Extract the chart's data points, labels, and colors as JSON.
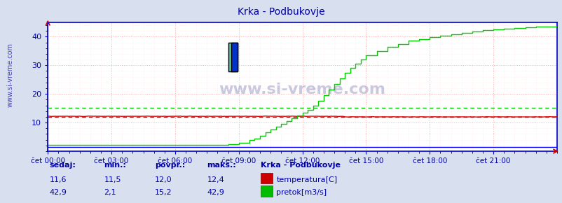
{
  "title": "Krka - Podbukovje",
  "title_color": "#0000aa",
  "bg_color": "#d8e0f0",
  "plot_bg_color": "#ffffff",
  "grid_color_major": "#ffaaaa",
  "grid_color_minor": "#ffe8e8",
  "ylim": [
    0,
    45
  ],
  "yticks": [
    10,
    20,
    30,
    40
  ],
  "xlabel_color": "#0000aa",
  "watermark": "www.si-vreme.com",
  "xtick_labels": [
    "čet 00:00",
    "čet 03:00",
    "čet 06:00",
    "čet 09:00",
    "čet 12:00",
    "čet 15:00",
    "čet 18:00",
    "čet 21:00"
  ],
  "temp_color": "#dd0000",
  "temp_avg_color": "#dd0000",
  "flow_color": "#00cc00",
  "flow_avg_color": "#00cc00",
  "blue_line_color": "#0000ff",
  "temp_avg": 12.0,
  "flow_avg": 15.2,
  "legend_title": "Krka - Podbukovje",
  "legend_items": [
    "temperatura[C]",
    "pretok[m3/s]"
  ],
  "stats_headers": [
    "sedaj:",
    "min.:",
    "povpr.:",
    "maks.:"
  ],
  "stats_temp": [
    "11,6",
    "11,5",
    "12,0",
    "12,4"
  ],
  "stats_flow": [
    "42,9",
    "2,1",
    "15,2",
    "42,9"
  ],
  "axis_color": "#0000cc",
  "sidebar_text": "www.si-vreme.com",
  "sidebar_color": "#4444bb"
}
